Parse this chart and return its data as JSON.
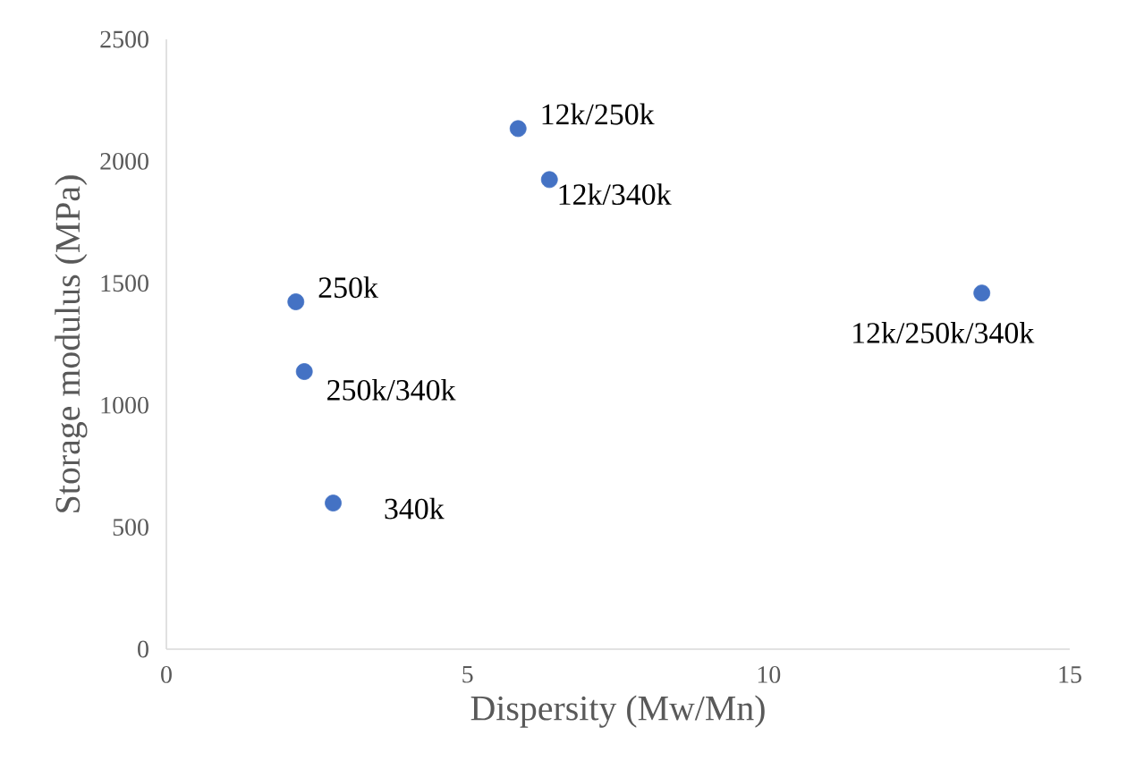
{
  "chart_data": {
    "type": "scatter",
    "xlabel": "Dispersity (Mw/Mn)",
    "ylabel": "Storage modulus (MPa)",
    "x": [
      5.84,
      6.36,
      2.15,
      2.29,
      2.77,
      13.54
    ],
    "values": [
      2134,
      1925,
      1424,
      1138,
      599,
      1460
    ],
    "color": "#4472c4",
    "marker": "circle",
    "xlim": [
      0,
      15
    ],
    "xticks": [
      0,
      5,
      10,
      15
    ],
    "ylim": [
      0,
      2500
    ],
    "yticks": [
      0,
      500,
      1000,
      1500,
      2000,
      2500
    ],
    "annotations": [
      {
        "text": "12k/250k",
        "x": 5.84,
        "y": 2134
      },
      {
        "text": "12k/340k",
        "x": 6.36,
        "y": 1925
      },
      {
        "text": "250k",
        "x": 2.15,
        "y": 1424
      },
      {
        "text": "250k/340k",
        "x": 2.29,
        "y": 1138
      },
      {
        "text": "340k",
        "x": 2.77,
        "y": 599
      },
      {
        "text": "12k/250k/340k",
        "x": 13.54,
        "y": 1460
      }
    ]
  }
}
